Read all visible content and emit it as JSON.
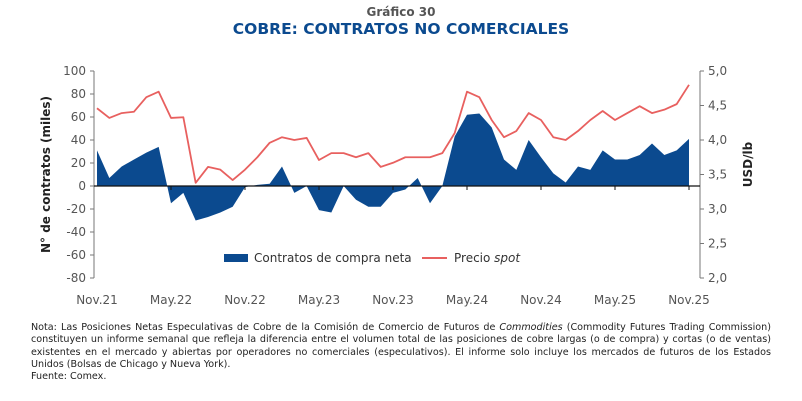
{
  "header": {
    "supertitle": "Gráfico 30",
    "title": "COBRE: CONTRATOS NO COMERCIALES"
  },
  "chart_data": {
    "type": "area+line",
    "ylabel_left": "N° de contratos (miles)",
    "ylabel_right": "USD/lb",
    "ylim_left": [
      -80,
      100
    ],
    "ylim_right": [
      2.0,
      5.0
    ],
    "yticks_left": [
      "100",
      "80",
      "60",
      "40",
      "20",
      "0",
      "-20",
      "-40",
      "-60",
      "-80"
    ],
    "yticks_right": [
      "5,0",
      "4,5",
      "4,0",
      "3,5",
      "3,0",
      "2,5",
      "2,0"
    ],
    "xticks": [
      "Nov.21",
      "May.22",
      "Nov.22",
      "May.23",
      "Nov.23",
      "May.24",
      "Nov.24",
      "May.25",
      "Nov.25"
    ],
    "legend_position": "bottom-center",
    "x": [
      "2021-11",
      "2021-12",
      "2022-01",
      "2022-02",
      "2022-03",
      "2022-04",
      "2022-05",
      "2022-06",
      "2022-07",
      "2022-08",
      "2022-09",
      "2022-10",
      "2022-11",
      "2022-12",
      "2023-01",
      "2023-02",
      "2023-03",
      "2023-04",
      "2023-05",
      "2023-06",
      "2023-07",
      "2023-08",
      "2023-09",
      "2023-10",
      "2023-11",
      "2023-12",
      "2024-01",
      "2024-02",
      "2024-03",
      "2024-04",
      "2024-05",
      "2024-06",
      "2024-07",
      "2024-08",
      "2024-09",
      "2024-10",
      "2024-11",
      "2024-12",
      "2025-01",
      "2025-02",
      "2025-03",
      "2025-04",
      "2025-05",
      "2025-06",
      "2025-07",
      "2025-08",
      "2025-09",
      "2025-10",
      "2025-11"
    ],
    "series": [
      {
        "name": "Contratos de compra neta",
        "axis": "left",
        "kind": "area",
        "color": "#0b4a8f",
        "values": [
          31,
          7,
          17,
          23,
          29,
          34,
          -15,
          -6,
          -30,
          -27,
          -23,
          -18,
          -1,
          1,
          2,
          17,
          -6,
          0,
          -21,
          -23,
          0,
          -12,
          -18,
          -18,
          -6,
          -3,
          7,
          -15,
          0,
          43,
          62,
          63,
          51,
          23,
          14,
          40,
          25,
          11,
          3,
          17,
          14,
          31,
          23,
          23,
          27,
          37,
          27,
          31,
          41
        ]
      },
      {
        "name": "Precio spot",
        "name_plain": "Precio ",
        "name_italic": "spot",
        "axis": "right",
        "kind": "line",
        "color": "#e8605f",
        "values": [
          4.46,
          4.32,
          4.39,
          4.41,
          4.62,
          4.7,
          4.32,
          4.33,
          3.38,
          3.61,
          3.57,
          3.42,
          3.57,
          3.75,
          3.96,
          4.04,
          4.0,
          4.03,
          3.71,
          3.81,
          3.81,
          3.75,
          3.81,
          3.61,
          3.67,
          3.75,
          3.75,
          3.75,
          3.81,
          4.1,
          4.7,
          4.62,
          4.29,
          4.04,
          4.13,
          4.39,
          4.29,
          4.04,
          4.0,
          4.13,
          4.29,
          4.42,
          4.29,
          4.39,
          4.49,
          4.39,
          4.44,
          4.52,
          4.8
        ]
      }
    ]
  },
  "note": {
    "part1": "Nota: Las Posiciones Netas Especulativas de Cobre de la Comisión de Comercio de Futuros de ",
    "italic": "Commodities",
    "part2": " (Commodity Futures Trading Commission) constituyen un informe semanal que refleja la diferencia entre el volumen total de las posiciones de cobre largas (o de compra) y cortas (o de ventas) existentes en el mercado y abiertas por operadores no comerciales (especulativos). El informe solo incluye los mercados de futuros de los Estados Unidos (Bolsas de Chicago y Nueva York).",
    "source": "Fuente: Comex."
  }
}
